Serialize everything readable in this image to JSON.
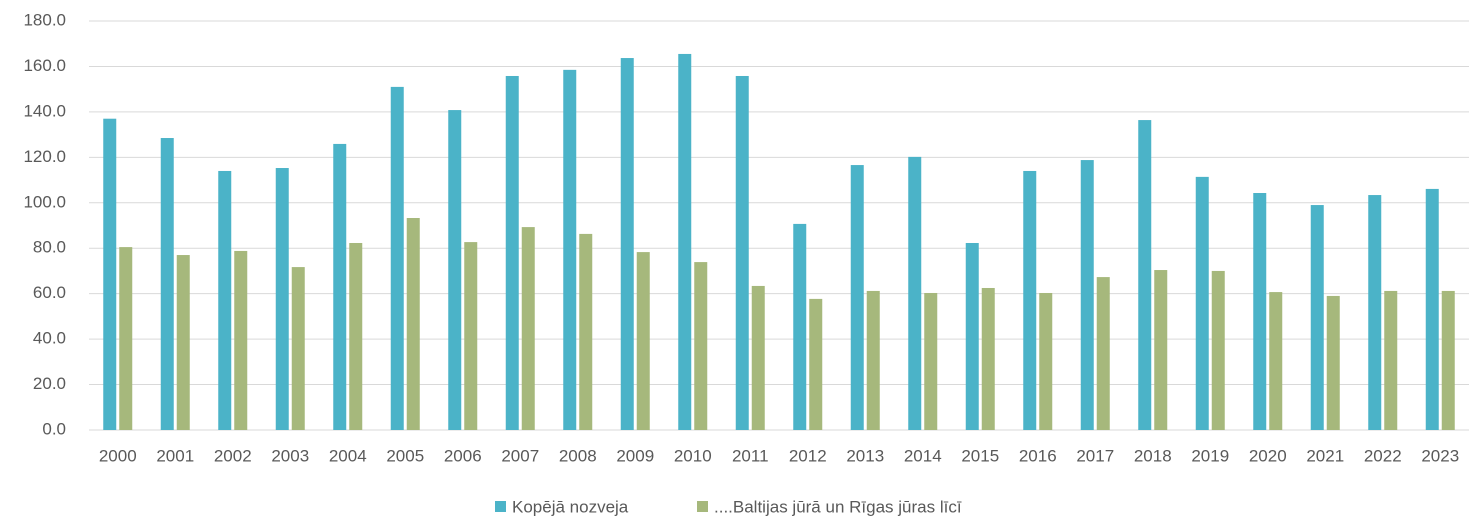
{
  "chart_data": {
    "type": "bar",
    "categories": [
      "2000",
      "2001",
      "2002",
      "2003",
      "2004",
      "2005",
      "2006",
      "2007",
      "2008",
      "2009",
      "2010",
      "2011",
      "2012",
      "2013",
      "2014",
      "2015",
      "2016",
      "2017",
      "2018",
      "2019",
      "2020",
      "2021",
      "2022",
      "2023"
    ],
    "series": [
      {
        "name": "Kopējā nozveja",
        "color": "#4bb3c8",
        "values": [
          137,
          128.5,
          114,
          115.3,
          125.9,
          151,
          140.8,
          155.8,
          158.5,
          163.7,
          165.5,
          155.8,
          90.7,
          116.6,
          120.2,
          82.3,
          114,
          118.8,
          136.4,
          111.4,
          104.3,
          99,
          103.4,
          106.1
        ]
      },
      {
        "name": "....Baltijas jūrā un Rīgas jūras līcī",
        "color": "#a6b87c",
        "values": [
          80.5,
          77,
          78.8,
          71.7,
          82.3,
          93.3,
          82.7,
          89.3,
          86.3,
          78.3,
          73.9,
          63.4,
          57.7,
          61.2,
          60.3,
          62.5,
          60.3,
          67.3,
          70.4,
          70,
          60.7,
          59,
          61.2,
          61.2
        ]
      }
    ],
    "ylim": [
      0,
      180
    ],
    "yticks": [
      {
        "value": 0,
        "label": "0.0"
      },
      {
        "value": 20,
        "label": "20.0"
      },
      {
        "value": 40,
        "label": "40.0"
      },
      {
        "value": 60,
        "label": "60.0"
      },
      {
        "value": 80,
        "label": "80.0"
      },
      {
        "value": 100,
        "label": "100.0"
      },
      {
        "value": 120,
        "label": "120.0"
      },
      {
        "value": 140,
        "label": "140.0"
      },
      {
        "value": 160,
        "label": "160.0"
      },
      {
        "value": 180,
        "label": "180.0"
      }
    ],
    "grid": true,
    "legend": "bottom"
  }
}
